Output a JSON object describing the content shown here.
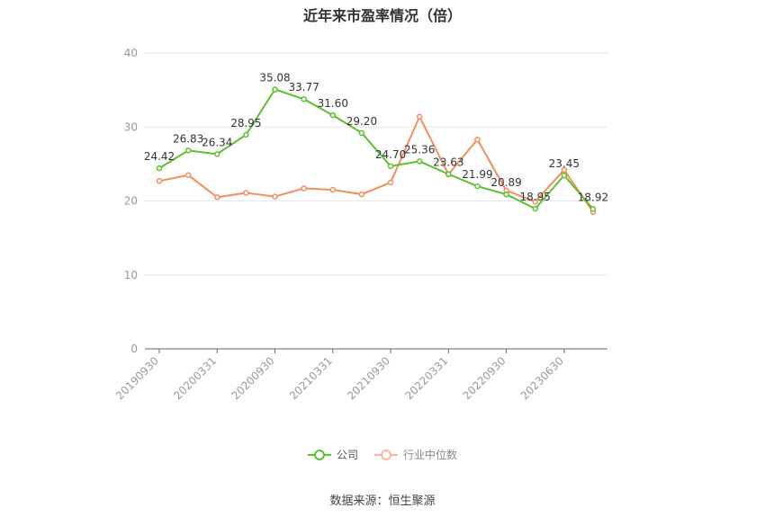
{
  "page": {
    "title": "近年来市盈率情况（倍）",
    "source": "数据来源：恒生聚源"
  },
  "chart_data": {
    "type": "line",
    "title": "近年来市盈率情况（倍）",
    "ylim": [
      0,
      40
    ],
    "yticks": [
      0,
      10,
      20,
      30,
      40
    ],
    "x_tick_labels": [
      "20190930",
      "20200331",
      "20200930",
      "20210331",
      "20210930",
      "20220331",
      "20220930",
      "20230630"
    ],
    "x_tick_positions": [
      0,
      2,
      4,
      6,
      8,
      10,
      12,
      14
    ],
    "grid": true,
    "legend_position": "bottom",
    "series": [
      {
        "name": "公司",
        "color": "#5cc12e",
        "values": [
          24.42,
          26.83,
          26.34,
          28.95,
          35.08,
          33.77,
          31.6,
          29.2,
          24.7,
          25.36,
          23.63,
          21.99,
          20.89,
          18.95,
          23.45,
          18.92
        ],
        "labels": [
          "24.42",
          "26.83",
          "26.34",
          "28.95",
          "35.08",
          "33.77",
          "31.60",
          "29.20",
          "24.70",
          "25.36",
          "23.63",
          "21.99",
          "20.89",
          "18.95",
          "23.45",
          "18.92"
        ]
      },
      {
        "name": "行业中位数",
        "color": "#f28e5c",
        "values": [
          22.7,
          23.5,
          20.5,
          21.1,
          20.6,
          21.7,
          21.5,
          20.9,
          22.5,
          31.4,
          23.6,
          28.3,
          21.4,
          19.9,
          24.2,
          18.5
        ]
      }
    ]
  }
}
